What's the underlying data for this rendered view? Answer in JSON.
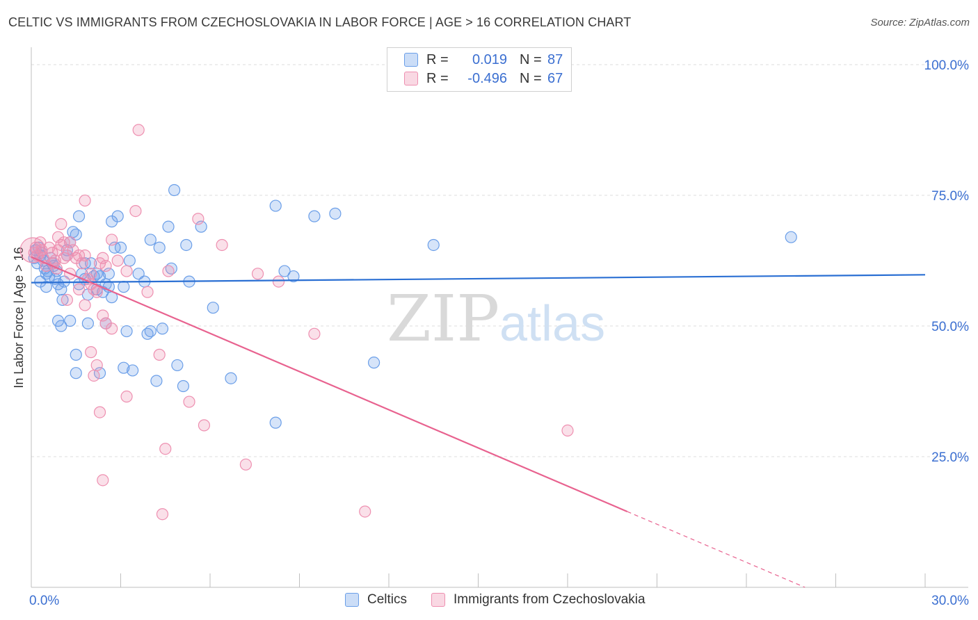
{
  "header": {
    "title": "CELTIC VS IMMIGRANTS FROM CZECHOSLOVAKIA IN LABOR FORCE | AGE > 16 CORRELATION CHART",
    "source": "Source: ZipAtlas.com"
  },
  "watermark": {
    "zip": "ZIP",
    "atlas": "atlas"
  },
  "legend": {
    "rows": [
      {
        "r_label": "R =",
        "r_value": "0.019",
        "n_label": "N =",
        "n_value": "87",
        "color": "#6a9ee8"
      },
      {
        "r_label": "R =",
        "r_value": "-0.496",
        "n_label": "N =",
        "n_value": "67",
        "color": "#ee8fb0"
      }
    ]
  },
  "bottom_legend": [
    {
      "label": "Celtics",
      "color": "#6a9ee8"
    },
    {
      "label": "Immigrants from Czechoslovakia",
      "color": "#ee8fb0"
    }
  ],
  "chart_data": {
    "type": "scatter",
    "title": "CELTIC VS IMMIGRANTS FROM CZECHOSLOVAKIA IN LABOR FORCE | AGE > 16 CORRELATION CHART",
    "xlabel": "",
    "ylabel": "In Labor Force | Age > 16",
    "xlim": [
      0,
      30
    ],
    "ylim": [
      0,
      102
    ],
    "x_tick_labels": [
      "0.0%",
      "30.0%"
    ],
    "y_ticks": [
      25,
      50,
      75,
      100
    ],
    "y_tick_labels": [
      "25.0%",
      "50.0%",
      "75.0%",
      "100.0%"
    ],
    "grid": true,
    "legend_position": "top-center",
    "series": [
      {
        "name": "Celtics",
        "color": "#6a9ee8",
        "trend": {
          "x": [
            0,
            30
          ],
          "y": [
            58.3,
            59.8
          ],
          "style": "solid"
        },
        "points": [
          [
            0.1,
            63
          ],
          [
            0.15,
            64.5
          ],
          [
            0.2,
            62
          ],
          [
            0.25,
            65
          ],
          [
            0.3,
            63.5
          ],
          [
            0.35,
            64
          ],
          [
            0.4,
            62.5
          ],
          [
            0.45,
            61
          ],
          [
            0.5,
            60
          ],
          [
            0.55,
            60.5
          ],
          [
            0.6,
            59.5
          ],
          [
            0.65,
            63
          ],
          [
            0.7,
            62
          ],
          [
            0.75,
            61.5
          ],
          [
            0.8,
            59
          ],
          [
            0.85,
            60.5
          ],
          [
            0.9,
            58
          ],
          [
            1.0,
            57
          ],
          [
            1.05,
            55
          ],
          [
            1.1,
            58.5
          ],
          [
            1.2,
            64.5
          ],
          [
            1.3,
            66
          ],
          [
            1.4,
            68
          ],
          [
            1.5,
            67.5
          ],
          [
            1.6,
            71
          ],
          [
            1.7,
            60
          ],
          [
            1.8,
            59
          ],
          [
            1.9,
            56
          ],
          [
            2.0,
            62
          ],
          [
            2.1,
            59.5
          ],
          [
            2.2,
            60
          ],
          [
            2.3,
            59.5
          ],
          [
            2.4,
            56.5
          ],
          [
            2.5,
            58
          ],
          [
            2.6,
            57.5
          ],
          [
            2.7,
            55.5
          ],
          [
            2.8,
            65
          ],
          [
            2.9,
            71
          ],
          [
            3.0,
            65
          ],
          [
            3.1,
            57.5
          ],
          [
            2.7,
            70
          ],
          [
            3.3,
            62.5
          ],
          [
            3.6,
            60
          ],
          [
            3.8,
            58.5
          ],
          [
            4.0,
            66.5
          ],
          [
            4.3,
            65
          ],
          [
            4.6,
            69
          ],
          [
            4.7,
            61
          ],
          [
            4.8,
            76
          ],
          [
            5.2,
            65.5
          ],
          [
            5.3,
            58.5
          ],
          [
            5.7,
            69
          ],
          [
            0.9,
            51
          ],
          [
            1.0,
            50
          ],
          [
            1.3,
            51
          ],
          [
            1.9,
            50.5
          ],
          [
            2.5,
            50.5
          ],
          [
            3.2,
            49
          ],
          [
            3.9,
            48.5
          ],
          [
            4.0,
            49
          ],
          [
            4.4,
            49.5
          ],
          [
            1.5,
            44.5
          ],
          [
            2.3,
            41
          ],
          [
            1.5,
            41
          ],
          [
            3.1,
            42
          ],
          [
            3.4,
            41.5
          ],
          [
            4.2,
            39.5
          ],
          [
            4.9,
            42.5
          ],
          [
            5.1,
            38.5
          ],
          [
            6.1,
            53.5
          ],
          [
            6.7,
            40
          ],
          [
            8.2,
            73
          ],
          [
            8.2,
            31.5
          ],
          [
            8.5,
            60.5
          ],
          [
            8.8,
            59.5
          ],
          [
            9.5,
            71
          ],
          [
            10.2,
            71.5
          ],
          [
            11.5,
            43
          ],
          [
            13.5,
            65.5
          ],
          [
            25.5,
            67
          ],
          [
            0.3,
            58.5
          ],
          [
            0.5,
            57.5
          ],
          [
            1.2,
            63.5
          ],
          [
            1.8,
            62
          ],
          [
            2.2,
            57
          ],
          [
            2.6,
            60
          ],
          [
            1.6,
            58
          ]
        ]
      },
      {
        "name": "Immigrants from Czechoslovakia",
        "color": "#ee8fb0",
        "trend": {
          "x": [
            0,
            20
          ],
          "y": [
            63.2,
            14.5
          ],
          "dash_x": [
            20,
            30
          ],
          "dash_y": [
            14.5,
            -9.8
          ]
        },
        "points": [
          [
            0.1,
            64
          ],
          [
            0.15,
            65
          ],
          [
            0.2,
            63.5
          ],
          [
            0.3,
            66
          ],
          [
            0.35,
            64.5
          ],
          [
            0.4,
            63
          ],
          [
            0.5,
            61.5
          ],
          [
            0.6,
            65
          ],
          [
            0.7,
            64
          ],
          [
            0.75,
            62
          ],
          [
            0.8,
            62.5
          ],
          [
            0.85,
            61
          ],
          [
            0.9,
            64.5
          ],
          [
            1.0,
            65.5
          ],
          [
            1.1,
            66
          ],
          [
            1.2,
            63.5
          ],
          [
            1.3,
            66
          ],
          [
            1.4,
            64.5
          ],
          [
            1.5,
            63
          ],
          [
            1.6,
            63.5
          ],
          [
            1.7,
            62
          ],
          [
            1.8,
            63.5
          ],
          [
            1.9,
            59
          ],
          [
            2.0,
            58
          ],
          [
            2.1,
            57
          ],
          [
            2.2,
            56.5
          ],
          [
            2.4,
            63
          ],
          [
            2.5,
            61.5
          ],
          [
            2.7,
            66.5
          ],
          [
            2.9,
            62.5
          ],
          [
            3.2,
            60.5
          ],
          [
            3.5,
            72
          ],
          [
            3.9,
            56.5
          ],
          [
            1.0,
            69.5
          ],
          [
            0.9,
            67
          ],
          [
            1.1,
            63
          ],
          [
            1.2,
            55
          ],
          [
            1.3,
            60
          ],
          [
            1.6,
            57
          ],
          [
            1.8,
            54
          ],
          [
            2.0,
            60
          ],
          [
            2.3,
            62
          ],
          [
            2.4,
            52
          ],
          [
            2.5,
            50.5
          ],
          [
            2.7,
            49.5
          ],
          [
            1.8,
            74
          ],
          [
            2.0,
            45
          ],
          [
            2.1,
            40.5
          ],
          [
            2.2,
            42.5
          ],
          [
            2.3,
            33.5
          ],
          [
            2.4,
            20.5
          ],
          [
            3.2,
            36.5
          ],
          [
            3.6,
            87.5
          ],
          [
            4.3,
            44.5
          ],
          [
            4.4,
            14
          ],
          [
            4.5,
            26.5
          ],
          [
            4.6,
            60.5
          ],
          [
            5.3,
            35.5
          ],
          [
            5.6,
            70.5
          ],
          [
            5.8,
            31
          ],
          [
            6.4,
            65.5
          ],
          [
            7.2,
            23.5
          ],
          [
            7.6,
            60
          ],
          [
            8.3,
            58.5
          ],
          [
            9.5,
            48.5
          ],
          [
            11.2,
            14.5
          ],
          [
            18.0,
            30
          ]
        ]
      }
    ]
  }
}
